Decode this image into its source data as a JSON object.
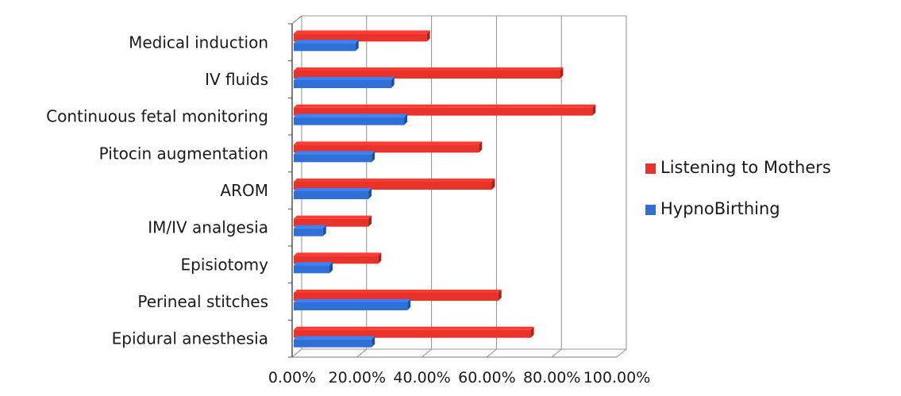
{
  "chart_data": {
    "type": "bar",
    "orientation": "horizontal",
    "style": "3d-clustered",
    "categories": [
      "Medical induction",
      "IV fluids",
      "Continuous fetal monitoring",
      "Pitocin augmentation",
      "AROM",
      "IM/IV analgesia",
      "Episiotomy",
      "Perineal stitches",
      "Epidural anesthesia"
    ],
    "series": [
      {
        "name": "Listening to Mothers",
        "color": "#e8322a",
        "values": [
          0.41,
          0.82,
          0.92,
          0.57,
          0.61,
          0.23,
          0.26,
          0.63,
          0.73
        ]
      },
      {
        "name": "HypnoBirthing",
        "color": "#2f6fd6",
        "values": [
          0.19,
          0.3,
          0.34,
          0.24,
          0.23,
          0.09,
          0.11,
          0.35,
          0.24
        ]
      }
    ],
    "xlim": [
      0,
      1
    ],
    "x_ticks": [
      "0.00%",
      "20.00%",
      "40.00%",
      "60.00%",
      "80.00%",
      "100.00%"
    ],
    "gridlines": true,
    "legend_position": "right"
  }
}
